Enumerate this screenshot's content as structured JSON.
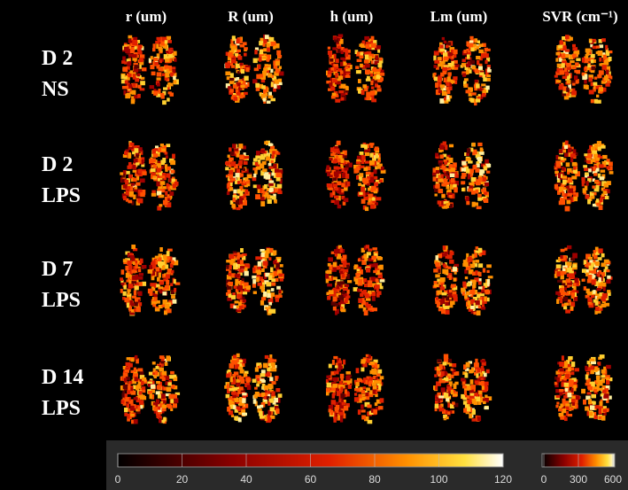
{
  "columns": [
    "r (um)",
    "R (um)",
    "h (um)",
    "Lm (um)",
    "SVR (cm⁻¹)"
  ],
  "rows": [
    {
      "day": "D 2",
      "group": "NS"
    },
    {
      "day": "D 2",
      "group": "LPS"
    },
    {
      "day": "D 7",
      "group": "LPS"
    },
    {
      "day": "D 14",
      "group": "LPS"
    }
  ],
  "colorbars": [
    {
      "ticks": [
        0,
        20,
        40,
        60,
        80,
        100,
        120
      ]
    },
    {
      "ticks": [
        0,
        300,
        600
      ]
    }
  ]
}
